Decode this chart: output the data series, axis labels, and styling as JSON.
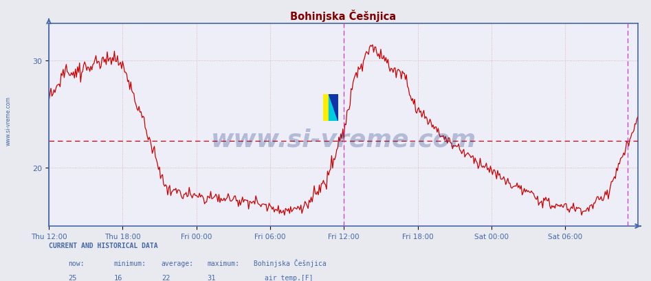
{
  "title": "Bohinjska Češnjica",
  "title_color": "#800000",
  "bg_color": "#e8eaf0",
  "plot_bg_color": "#eeeef8",
  "line_color": "#cc0000",
  "avg_line_color": "#cc0000",
  "avg_value": 22.5,
  "ylim": [
    14.5,
    33.5
  ],
  "yticks": [
    20,
    30
  ],
  "grid_color": "#d8a8a8",
  "grid_style": "dotted",
  "vline_color": "#cc44cc",
  "vline_x": 288,
  "vline_x2": 565,
  "xlabel_color": "#4466aa",
  "ylabel_color": "#4466aa",
  "spine_color": "#4466aa",
  "xtick_positions": [
    0,
    72,
    144,
    216,
    288,
    360,
    432,
    504
  ],
  "xtick_labels": [
    "Thu 12:00",
    "Thu 18:00",
    "Fri 00:00",
    "Fri 06:00",
    "Fri 12:00",
    "Fri 18:00",
    "Sat 00:00",
    "Sat 06:00"
  ],
  "watermark": "www.si-vreme.com",
  "watermark_color": "#1a3a80",
  "watermark_alpha": 0.28,
  "left_label": "www.si-vreme.com",
  "left_label_color": "#4466aa",
  "footer_label1": "CURRENT AND HISTORICAL DATA",
  "footer_row2": [
    "now:",
    "minimum:",
    "average:",
    "maximum:",
    "Bohinjska Češnjica"
  ],
  "footer_row3": [
    "25",
    "16",
    "22",
    "31"
  ],
  "footer_series": "air temp.[F]",
  "footer_color": "#4466aa",
  "series_color": "#cc0000",
  "n_points": 576,
  "xlim_end": 575
}
